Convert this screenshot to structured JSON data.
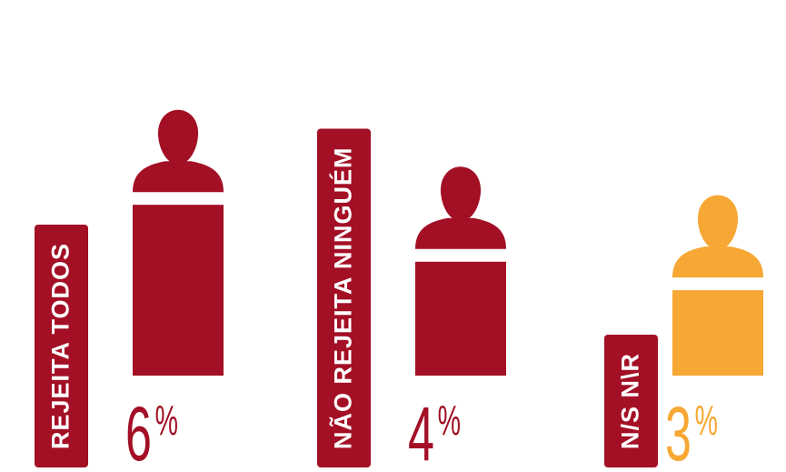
{
  "chart_data": {
    "type": "bar",
    "categories": [
      "REJEITA TODOS",
      "NÃO REJEITA NINGUÉM",
      "N/S N\\R"
    ],
    "values": [
      6,
      4,
      3
    ],
    "value_labels": [
      "6%",
      "4%",
      "3%"
    ],
    "colors": [
      "#a30f25",
      "#a30f25",
      "#f7a733"
    ]
  }
}
